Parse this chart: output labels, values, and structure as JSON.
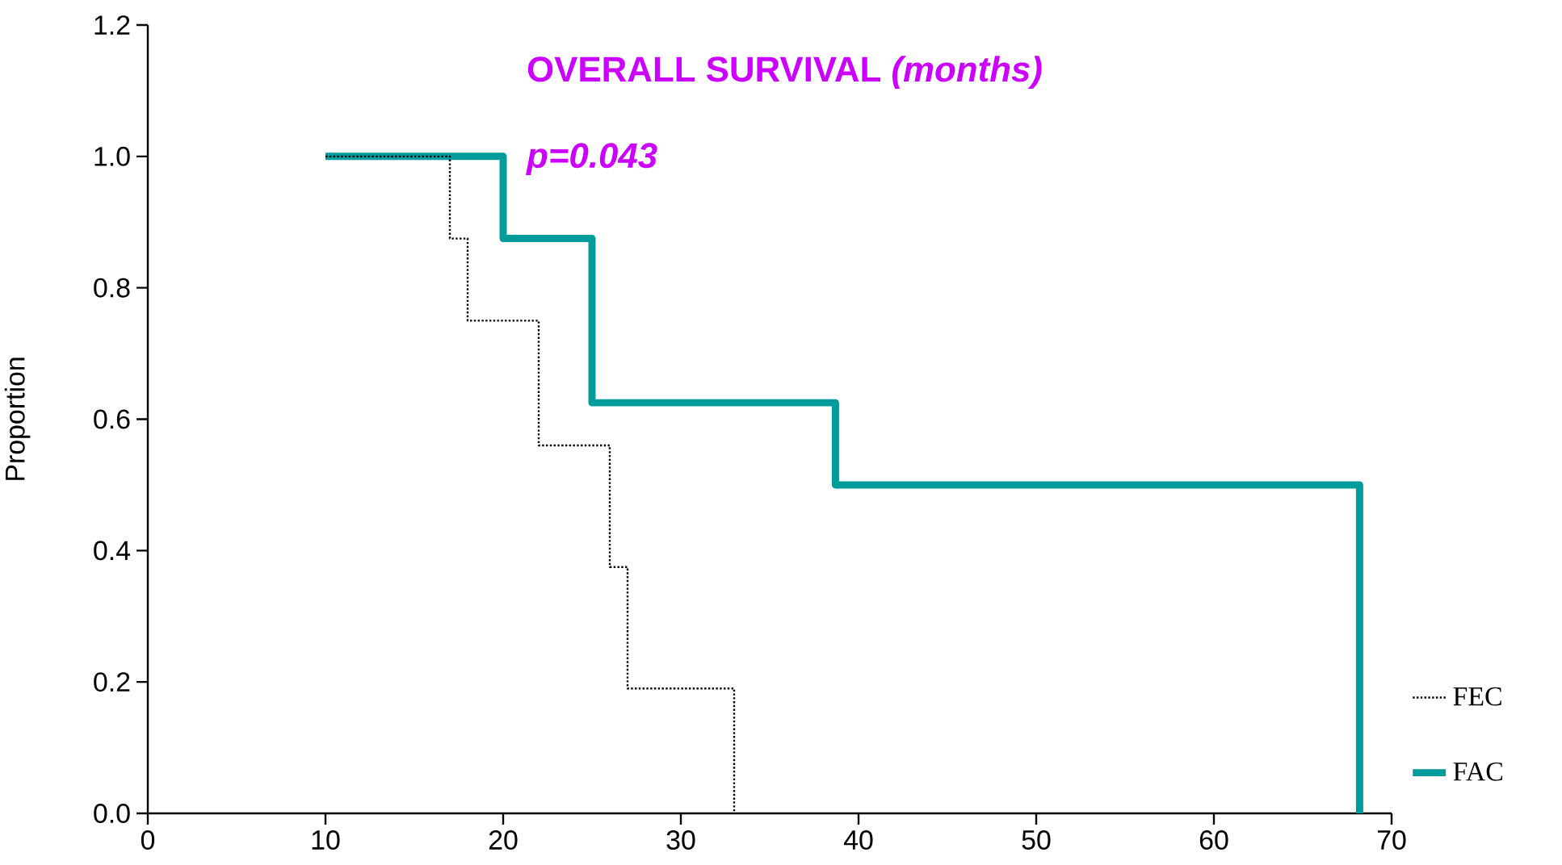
{
  "chart_data": {
    "type": "step",
    "title": "OVERALL SURVIVAL *(months)*",
    "ylabel": "Proportion",
    "annotations": [
      "p=0.043"
    ],
    "series": [
      {
        "name": "FEC",
        "color": "#000000",
        "line_style": "dotted",
        "x": [
          10,
          17,
          18,
          22,
          26,
          27,
          33
        ],
        "values": [
          1.0,
          0.875,
          0.75,
          0.56,
          0.375,
          0.19,
          0
        ]
      },
      {
        "name": "FAC",
        "color": "#009b9b",
        "line_style": "solid",
        "x": [
          10,
          20,
          25,
          38.7,
          68.2
        ],
        "values": [
          1.0,
          0.875,
          0.625,
          0.5,
          0
        ]
      }
    ],
    "xlim": [
      0,
      70
    ],
    "ylim": [
      0,
      1.2
    ],
    "xticks": [
      0,
      10,
      20,
      30,
      40,
      50,
      60,
      70
    ],
    "yticks": [
      {
        "value": 0,
        "label": "0.0"
      },
      0.2,
      0.4,
      0.6,
      0.8,
      {
        "value": 1,
        "label": "1.0"
      },
      1.2
    ],
    "legend": "right",
    "grid": false
  }
}
